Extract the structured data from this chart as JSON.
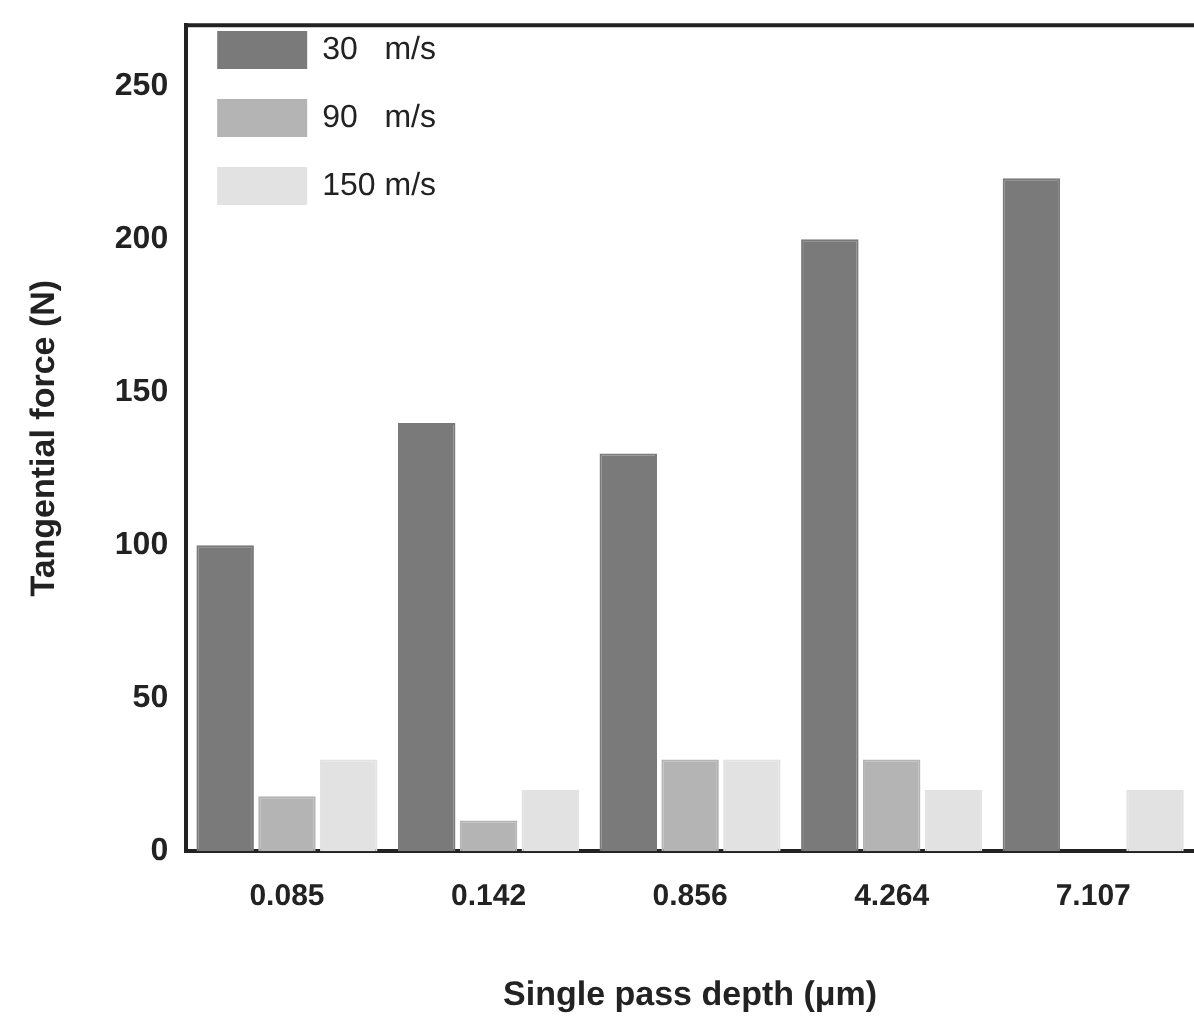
{
  "chart_data": {
    "type": "bar",
    "xlabel": "Single pass depth (μm)",
    "ylabel": "Tangential force (N)",
    "categories": [
      "0.085",
      "0.142",
      "0.856",
      "4.264",
      "7.107"
    ],
    "series": [
      {
        "name": "30   m/s",
        "color": "#7a7a7a",
        "values": [
          100,
          140,
          130,
          200,
          220
        ]
      },
      {
        "name": "90   m/s",
        "color": "#b4b4b4",
        "values": [
          18,
          10,
          30,
          30,
          null
        ]
      },
      {
        "name": "150 m/s",
        "color": "#e2e2e2",
        "values": [
          30,
          20,
          30,
          20,
          20
        ]
      }
    ],
    "ylim": [
      0,
      270
    ],
    "yticks": [
      0,
      50,
      100,
      150,
      200,
      250
    ],
    "grid": false,
    "legend": "top left"
  }
}
